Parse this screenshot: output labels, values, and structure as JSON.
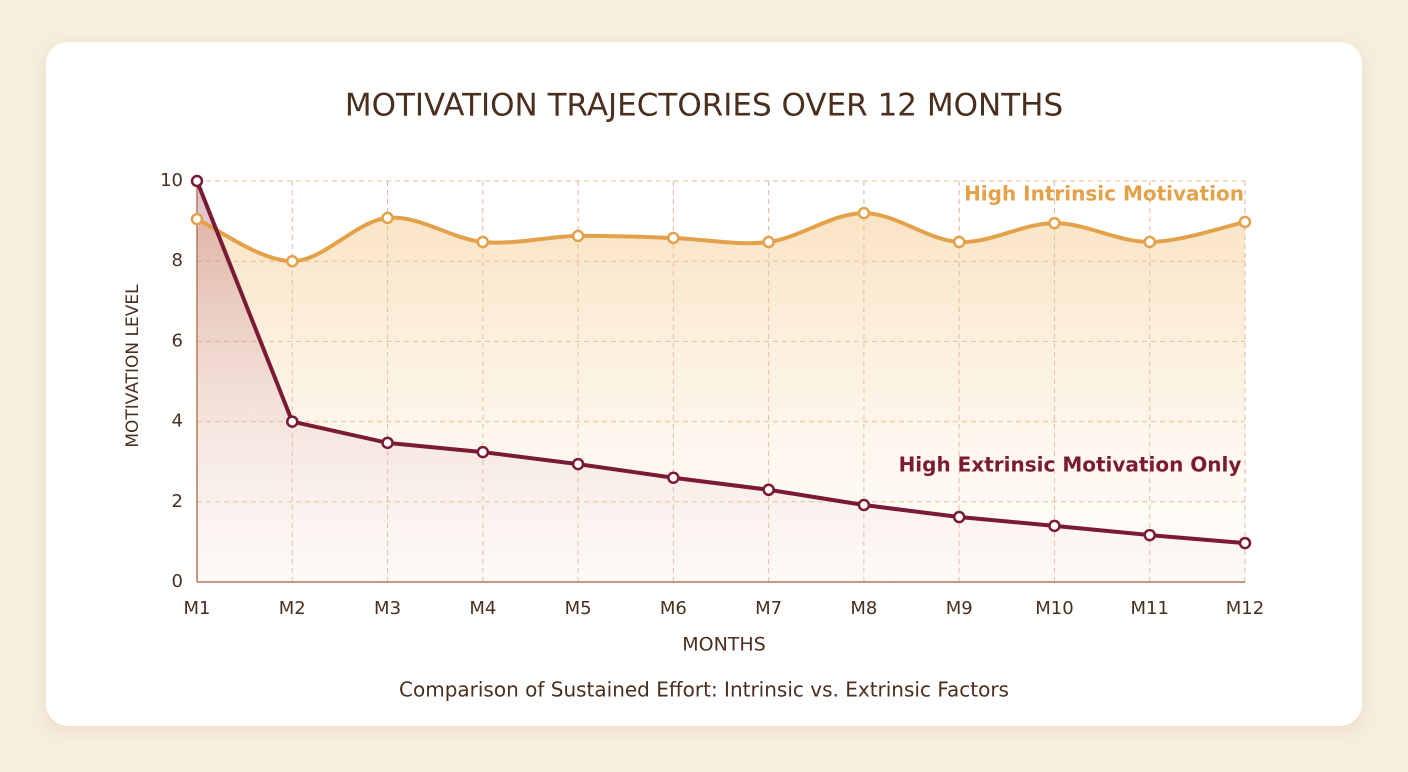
{
  "chart_data": {
    "type": "line",
    "title": "MOTIVATION TRAJECTORIES OVER 12 MONTHS",
    "caption": "Comparison of Sustained Effort: Intrinsic vs. Extrinsic Factors",
    "x_label": "MONTHS",
    "y_label": "MOTIVATION LEVEL",
    "categories": [
      "M1",
      "M2",
      "M3",
      "M4",
      "M5",
      "M6",
      "M7",
      "M8",
      "M9",
      "M10",
      "M11",
      "M12"
    ],
    "series": [
      {
        "name": "High Intrinsic Motivation",
        "color": "#e3a24a",
        "values": [
          9.05,
          8.0,
          9.08,
          8.48,
          8.63,
          8.58,
          8.48,
          9.2,
          8.48,
          8.95,
          8.48,
          8.98
        ]
      },
      {
        "name": "High Extrinsic Motivation Only",
        "color": "#7a1a34",
        "values": [
          10,
          4.0,
          3.47,
          3.24,
          2.94,
          2.6,
          2.3,
          1.92,
          1.62,
          1.4,
          1.17,
          0.97
        ]
      }
    ],
    "ylim": [
      0,
      10
    ],
    "yticks": [
      0,
      2,
      4,
      6,
      8,
      10
    ],
    "grid": true
  }
}
